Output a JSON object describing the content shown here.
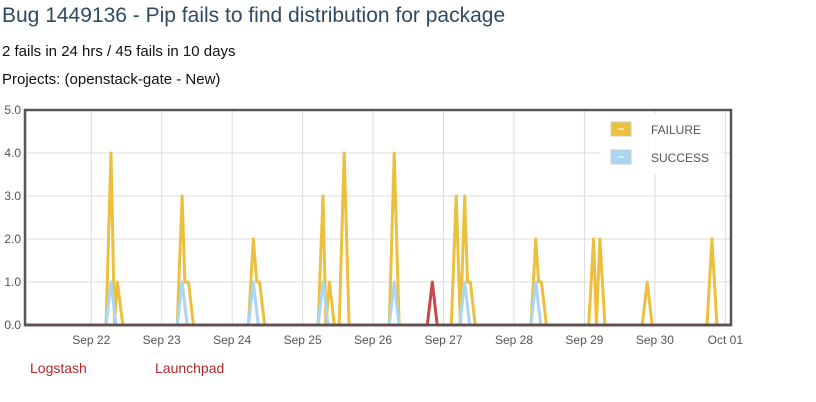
{
  "title": "Bug 1449136 - Pip fails to find distribution for package",
  "fail_summary": "2 fails in 24 hrs / 45 fails in 10 days",
  "projects": "Projects: (openstack-gate - New)",
  "links": {
    "logstash": "Logstash",
    "launchpad": "Launchpad"
  },
  "chart_data": {
    "type": "line",
    "xlabel": "",
    "ylabel": "",
    "ylim": [
      0,
      5
    ],
    "yticks": [
      "0.0",
      "1.0",
      "2.0",
      "3.0",
      "4.0",
      "5.0"
    ],
    "x_unit": "days since Sep 22 00:00",
    "xlim": [
      -0.94,
      9.08
    ],
    "xticks": [
      {
        "x": 0,
        "label": "Sep 22"
      },
      {
        "x": 1,
        "label": "Sep 23"
      },
      {
        "x": 2,
        "label": "Sep 24"
      },
      {
        "x": 3,
        "label": "Sep 25"
      },
      {
        "x": 4,
        "label": "Sep 26"
      },
      {
        "x": 5,
        "label": "Sep 27"
      },
      {
        "x": 6,
        "label": "Sep 28"
      },
      {
        "x": 7,
        "label": "Sep 29"
      },
      {
        "x": 8,
        "label": "Sep 30"
      },
      {
        "x": 9,
        "label": "Oct 01"
      }
    ],
    "grid": true,
    "legend_position": "top-right",
    "series": [
      {
        "name": "",
        "color": "#c94848",
        "points": [
          [
            -0.94,
            0
          ],
          [
            4.77,
            0
          ],
          [
            4.84,
            1
          ],
          [
            4.91,
            0
          ],
          [
            9.08,
            0
          ]
        ]
      },
      {
        "name": "SUCCESS",
        "color": "#acd5f2",
        "points": [
          [
            -0.94,
            0
          ],
          [
            0.21,
            0
          ],
          [
            0.28,
            1
          ],
          [
            0.35,
            0
          ],
          [
            1.22,
            0
          ],
          [
            1.29,
            1
          ],
          [
            1.36,
            0
          ],
          [
            2.23,
            0
          ],
          [
            2.3,
            1
          ],
          [
            2.37,
            0
          ],
          [
            3.22,
            0
          ],
          [
            3.29,
            1
          ],
          [
            3.36,
            0
          ],
          [
            4.23,
            0
          ],
          [
            4.3,
            1
          ],
          [
            4.37,
            0
          ],
          [
            5.23,
            0
          ],
          [
            5.3,
            1
          ],
          [
            5.37,
            0
          ],
          [
            6.24,
            0
          ],
          [
            6.31,
            1
          ],
          [
            6.38,
            0
          ],
          [
            9.08,
            0
          ]
        ]
      },
      {
        "name": "FAILURE",
        "color": "#ecc03e",
        "points": [
          [
            -0.94,
            0
          ],
          [
            0.21,
            0
          ],
          [
            0.28,
            4
          ],
          [
            0.33,
            0.05
          ],
          [
            0.37,
            1
          ],
          [
            0.45,
            0
          ],
          [
            1.22,
            0
          ],
          [
            1.29,
            3
          ],
          [
            1.33,
            1
          ],
          [
            1.38,
            1
          ],
          [
            1.45,
            0
          ],
          [
            2.23,
            0
          ],
          [
            2.3,
            2
          ],
          [
            2.35,
            1
          ],
          [
            2.39,
            1
          ],
          [
            2.46,
            0
          ],
          [
            3.22,
            0
          ],
          [
            3.29,
            3
          ],
          [
            3.33,
            0
          ],
          [
            3.38,
            1
          ],
          [
            3.45,
            0
          ],
          [
            3.52,
            0
          ],
          [
            3.59,
            4
          ],
          [
            3.66,
            0
          ],
          [
            4.23,
            0
          ],
          [
            4.3,
            4
          ],
          [
            4.37,
            0
          ],
          [
            5.11,
            0
          ],
          [
            5.18,
            3
          ],
          [
            5.24,
            0
          ],
          [
            5.3,
            3
          ],
          [
            5.34,
            1
          ],
          [
            5.38,
            1
          ],
          [
            5.45,
            0
          ],
          [
            6.24,
            0
          ],
          [
            6.31,
            2
          ],
          [
            6.35,
            1
          ],
          [
            6.39,
            1
          ],
          [
            6.46,
            0
          ],
          [
            7.06,
            0
          ],
          [
            7.13,
            2
          ],
          [
            7.17,
            0
          ],
          [
            7.22,
            2
          ],
          [
            7.29,
            0
          ],
          [
            7.82,
            0
          ],
          [
            7.89,
            1
          ],
          [
            7.96,
            0
          ],
          [
            8.74,
            0
          ],
          [
            8.81,
            2
          ],
          [
            8.88,
            0
          ],
          [
            9.08,
            0
          ]
        ]
      }
    ]
  }
}
